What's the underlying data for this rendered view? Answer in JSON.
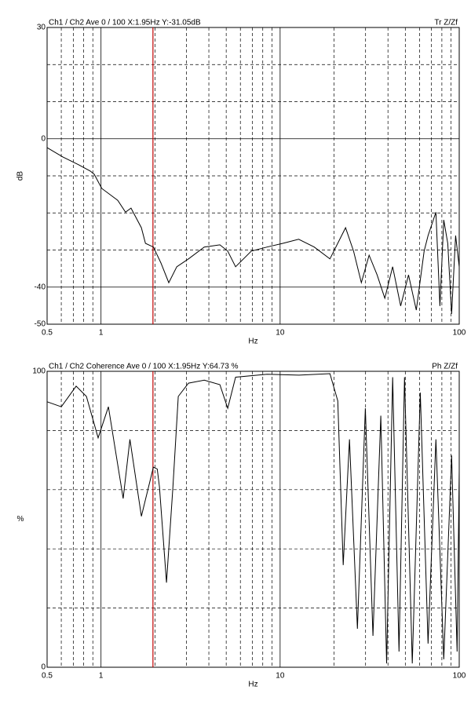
{
  "chart_data": [
    {
      "type": "line",
      "title": "Ch1 / Ch2  Ave 0 / 100  X:1.95Hz  Y:-31.05dB",
      "title_right": "Tr Z/Zf",
      "xlabel": "Hz",
      "ylabel": "dB",
      "log_x": true,
      "xlim": [
        0.5,
        100
      ],
      "ylim": [
        -50,
        30
      ],
      "xticks": [
        0.5,
        1,
        10,
        100
      ],
      "yticks": [
        -50,
        -40,
        0,
        30
      ],
      "xgrid": [
        0.6,
        0.7,
        0.8,
        0.9,
        2,
        3,
        4,
        5,
        6,
        7,
        8,
        9,
        20,
        30,
        40,
        50,
        60,
        70,
        80,
        90
      ],
      "ygrid": [
        -30,
        -20,
        -10,
        10,
        20
      ],
      "cursor": {
        "x": 1.95,
        "color": "#c00000"
      },
      "color": "#000000",
      "x": [
        0.5,
        0.612,
        0.749,
        0.871,
        0.917,
        1.01,
        1.24,
        1.37,
        1.47,
        1.68,
        1.77,
        1.96,
        2.16,
        2.39,
        2.65,
        3.08,
        3.77,
        4.61,
        5.1,
        5.64,
        6.9,
        8.45,
        10.35,
        12.7,
        15.5,
        18.97,
        23.2,
        25.7,
        28.4,
        31.4,
        34.8,
        38.4,
        42.5,
        47.1,
        52.1,
        57.6,
        63.7,
        67,
        74.1,
        78,
        82,
        86.3,
        90.7,
        95.5,
        100
      ],
      "values": [
        -2.4,
        -4.9,
        -7,
        -8.7,
        -9.6,
        -13.4,
        -16.6,
        -19.8,
        -18.7,
        -24,
        -28.2,
        -29.2,
        -33.5,
        -38.8,
        -34.5,
        -32.4,
        -29.2,
        -28.6,
        -30.3,
        -34.5,
        -30.3,
        -29.2,
        -28.2,
        -27.1,
        -29.2,
        -32.4,
        -24,
        -30.3,
        -38.8,
        -31.4,
        -36.7,
        -43,
        -34.5,
        -45.1,
        -36.7,
        -46.2,
        -30.3,
        -26.1,
        -19.8,
        -45.1,
        -21.9,
        -28.2,
        -47.2,
        -26.1,
        -34.5
      ]
    },
    {
      "type": "line",
      "title": "Ch1 / Ch2  Coherence Ave 0 / 100  X:1.95Hz  Y:64.73 %",
      "title_right": "Ph Z/Zf",
      "xlabel": "Hz",
      "ylabel": "%",
      "log_x": true,
      "xlim": [
        0.5,
        100
      ],
      "ylim": [
        0,
        100
      ],
      "xticks": [
        0.5,
        1,
        10,
        100
      ],
      "yticks": [
        0,
        100
      ],
      "xgrid": [
        0.6,
        0.7,
        0.8,
        0.9,
        2,
        3,
        4,
        5,
        6,
        7,
        8,
        9,
        20,
        30,
        40,
        50,
        60,
        70,
        80,
        90
      ],
      "ygrid": [
        20,
        40,
        60,
        80
      ],
      "cursor": {
        "x": 1.95,
        "color": "#c00000"
      },
      "color": "#000000",
      "x": [
        0.5,
        0.6,
        0.726,
        0.829,
        0.964,
        1.1,
        1.33,
        1.45,
        1.68,
        1.96,
        2.06,
        2.12,
        2.32,
        2.52,
        2.7,
        3.08,
        3.77,
        4.61,
        5.1,
        5.64,
        8.45,
        12.7,
        18.97,
        20.99,
        22.5,
        24.4,
        27,
        29.9,
        33,
        36.5,
        39.3,
        42.5,
        46.1,
        49.5,
        54.7,
        60.6,
        67,
        74.1,
        82,
        90.7,
        97.3,
        100
      ],
      "values": [
        89.7,
        88,
        95,
        91.5,
        77.5,
        88,
        57,
        77,
        51,
        67.6,
        67,
        61,
        28.6,
        61,
        91.5,
        96,
        97,
        95.5,
        87.5,
        98,
        99,
        98.7,
        99.2,
        90,
        34.5,
        77,
        13,
        87.5,
        10.6,
        85,
        1.3,
        98,
        5.3,
        98,
        1.3,
        92.8,
        8,
        77,
        2.7,
        71.6,
        5.3,
        66.3
      ]
    }
  ]
}
